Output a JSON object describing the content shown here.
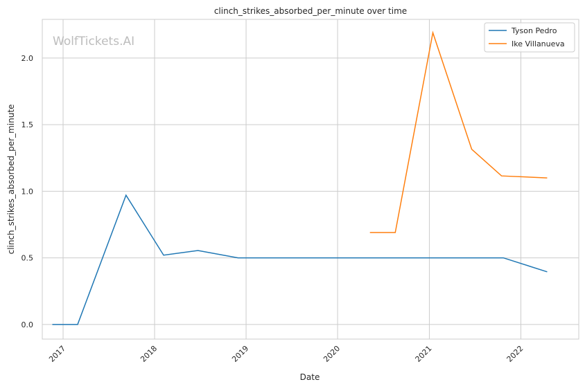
{
  "chart_data": {
    "type": "line",
    "title": "clinch_strikes_absorbed_per_minute over time",
    "xlabel": "Date",
    "ylabel": "clinch_strikes_absorbed_per_minute",
    "watermark": "WolfTickets.AI",
    "x_ticks": [
      "2017",
      "2018",
      "2019",
      "2020",
      "2021",
      "2022"
    ],
    "y_ticks": [
      "0.0",
      "0.5",
      "1.0",
      "1.5",
      "2.0"
    ],
    "xlim": [
      "2016-10-10",
      "2022-08-20"
    ],
    "ylim": [
      -0.11,
      2.29
    ],
    "grid": true,
    "legend_placement": "top-right",
    "series": [
      {
        "name": "Tyson Pedro",
        "color": "#1f77b4",
        "points": [
          [
            "2016-11-19",
            0.0
          ],
          [
            "2017-02-28",
            0.0
          ],
          [
            "2017-09-09",
            0.97
          ],
          [
            "2018-02-06",
            0.52
          ],
          [
            "2018-06-23",
            0.555
          ],
          [
            "2018-11-30",
            0.5
          ],
          [
            "2021-10-23",
            0.5
          ],
          [
            "2022-04-16",
            0.395
          ]
        ]
      },
      {
        "name": "Ike Villanueva",
        "color": "#ff7f0e",
        "points": [
          [
            "2020-05-09",
            0.69
          ],
          [
            "2020-08-18",
            0.69
          ],
          [
            "2021-01-15",
            2.19
          ],
          [
            "2021-06-19",
            1.315
          ],
          [
            "2021-10-16",
            1.115
          ],
          [
            "2022-04-16",
            1.1
          ]
        ]
      }
    ]
  }
}
